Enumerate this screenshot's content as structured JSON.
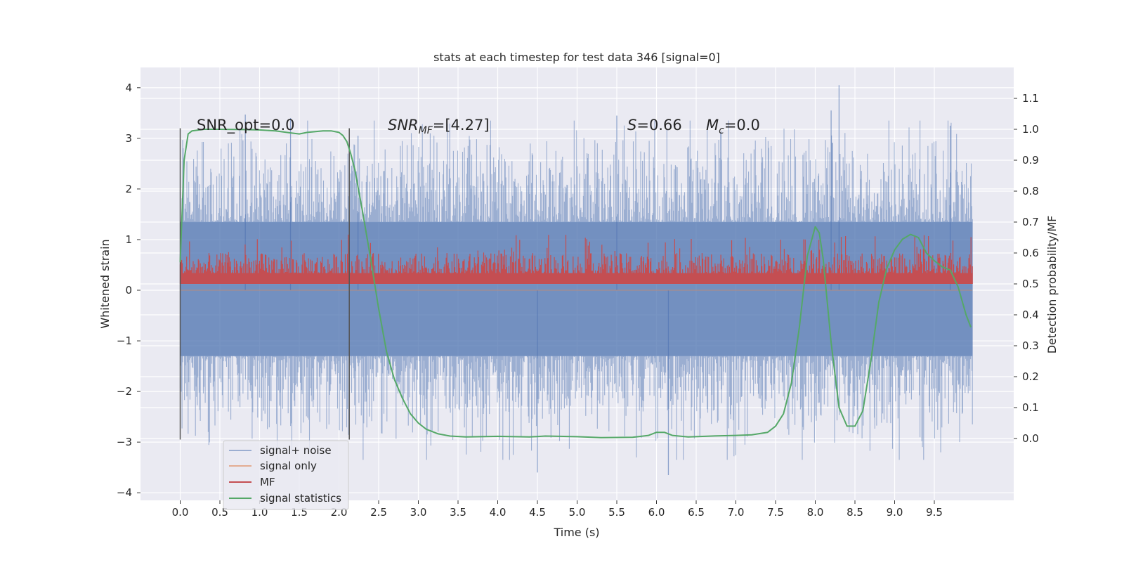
{
  "chart_data": {
    "type": "line",
    "title": "stats at each timestep for test data 346 [signal=0]",
    "xlabel": "Time (s)",
    "ylabel_left": "Whitened strain",
    "ylabel_right": "Detection probability/MF",
    "xlim": [
      -0.5,
      10.5
    ],
    "ylim_left": [
      -4.15,
      4.4
    ],
    "ylim_right": [
      -0.2,
      1.2
    ],
    "x_ticks": [
      0.0,
      0.5,
      1.0,
      1.5,
      2.0,
      2.5,
      3.0,
      3.5,
      4.0,
      4.5,
      5.0,
      5.5,
      6.0,
      6.5,
      7.0,
      7.5,
      8.0,
      8.5,
      9.0,
      9.5
    ],
    "x_tick_labels": [
      "0.0",
      "0.5",
      "1.0",
      "1.5",
      "2.0",
      "2.5",
      "3.0",
      "3.5",
      "4.0",
      "4.5",
      "5.0",
      "5.5",
      "6.0",
      "6.5",
      "7.0",
      "7.5",
      "8.0",
      "8.5",
      "9.0",
      "9.5"
    ],
    "y_left_ticks": [
      -4,
      -3,
      -2,
      -1,
      0,
      1,
      2,
      3,
      4
    ],
    "y_left_tick_labels": [
      "−4",
      "−3",
      "−2",
      "−1",
      "0",
      "1",
      "2",
      "3",
      "4"
    ],
    "y_right_ticks": [
      0.0,
      0.1,
      0.2,
      0.3,
      0.4,
      0.5,
      0.6,
      0.7,
      0.8,
      0.9,
      1.0,
      1.1
    ],
    "y_right_tick_labels": [
      "0.0",
      "0.1",
      "0.2",
      "0.3",
      "0.4",
      "0.5",
      "0.6",
      "0.7",
      "0.8",
      "0.9",
      "1.0",
      "1.1"
    ],
    "grid": true,
    "legend_position": "lower-left",
    "annotations": {
      "snr_opt": "SNR_opt=0.0",
      "snr_mf_prefix": "SNR",
      "snr_mf_sub": "MF",
      "snr_mf_value": "=[4.27]",
      "s_prefix": "S",
      "s_value": "=0.66",
      "mc_prefix": "M",
      "mc_sub": "c",
      "mc_value": "=0.0"
    },
    "markers": {
      "vertical_lines_x": [
        0.0,
        2.13
      ],
      "y_range_left": [
        -2.95,
        3.2
      ]
    },
    "series": [
      {
        "name": "signal+ noise",
        "color": "#4c72b0",
        "axis": "left",
        "x_range": [
          0.0,
          9.98
        ],
        "band": [
          -1.3,
          1.35
        ],
        "spike_range": [
          -3.7,
          4.05
        ],
        "notable_peaks": [
          [
            0.82,
            3.47
          ],
          [
            1.39,
            3.4
          ],
          [
            2.24,
            3.05
          ],
          [
            4.5,
            -3.6
          ],
          [
            5.5,
            3.45
          ],
          [
            6.15,
            -3.65
          ],
          [
            8.3,
            4.05
          ],
          [
            8.2,
            3.55
          ],
          [
            9.7,
            3.25
          ]
        ]
      },
      {
        "name": "signal only",
        "color": "#dd8452",
        "axis": "left",
        "values": [
          0,
          0
        ]
      },
      {
        "name": "MF",
        "color": "#c44e52",
        "axis": "right",
        "x_range": [
          0.0,
          9.98
        ],
        "base": 0.5,
        "typical_top": 0.6,
        "max_top": 0.66
      },
      {
        "name": "signal statistics",
        "color": "#55a868",
        "axis": "right",
        "x": [
          0.0,
          0.05,
          0.1,
          0.15,
          0.3,
          0.5,
          0.8,
          1.0,
          1.2,
          1.4,
          1.5,
          1.6,
          1.8,
          1.9,
          2.0,
          2.05,
          2.1,
          2.15,
          2.2,
          2.3,
          2.4,
          2.5,
          2.6,
          2.7,
          2.8,
          2.9,
          3.0,
          3.1,
          3.25,
          3.4,
          3.6,
          4.0,
          4.4,
          4.6,
          5.0,
          5.3,
          5.7,
          5.9,
          6.0,
          6.1,
          6.2,
          6.4,
          6.7,
          7.0,
          7.2,
          7.4,
          7.5,
          7.6,
          7.7,
          7.8,
          7.9,
          8.0,
          8.05,
          8.1,
          8.2,
          8.3,
          8.4,
          8.5,
          8.6,
          8.7,
          8.8,
          8.9,
          9.0,
          9.1,
          9.2,
          9.3,
          9.4,
          9.5,
          9.6,
          9.7,
          9.8,
          9.9,
          9.96
        ],
        "values": [
          0.57,
          0.9,
          0.985,
          0.995,
          1.0,
          1.0,
          0.999,
          0.998,
          0.995,
          0.988,
          0.985,
          0.99,
          0.995,
          0.995,
          0.99,
          0.98,
          0.96,
          0.92,
          0.87,
          0.73,
          0.58,
          0.42,
          0.28,
          0.19,
          0.13,
          0.08,
          0.05,
          0.03,
          0.015,
          0.008,
          0.005,
          0.007,
          0.005,
          0.008,
          0.006,
          0.003,
          0.004,
          0.01,
          0.02,
          0.02,
          0.01,
          0.005,
          0.008,
          0.01,
          0.012,
          0.02,
          0.04,
          0.08,
          0.18,
          0.36,
          0.59,
          0.685,
          0.665,
          0.58,
          0.31,
          0.1,
          0.04,
          0.04,
          0.09,
          0.25,
          0.44,
          0.55,
          0.61,
          0.645,
          0.66,
          0.65,
          0.6,
          0.575,
          0.555,
          0.545,
          0.49,
          0.4,
          0.36
        ]
      }
    ]
  }
}
